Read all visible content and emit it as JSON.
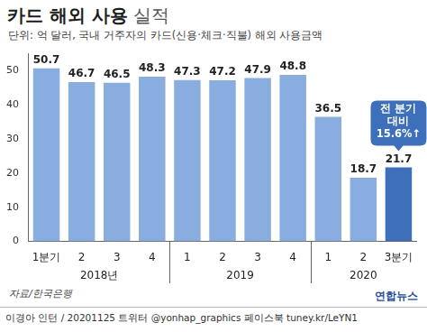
{
  "chart_data": {
    "type": "bar",
    "title": "카드 해외 사용 실적",
    "subtitle": "단위: 억 달러, 국내 거주자의 카드(신용·체크·직불) 해외 사용금액",
    "categories": [
      "1분기",
      "2",
      "3",
      "4",
      "1",
      "2",
      "3",
      "4",
      "1",
      "2",
      "3분기"
    ],
    "years": [
      {
        "label": "2018년",
        "span": 4
      },
      {
        "label": "2019",
        "span": 4
      },
      {
        "label": "2020",
        "span": 3
      }
    ],
    "values": [
      50.7,
      46.7,
      46.5,
      48.3,
      47.3,
      47.2,
      47.9,
      48.8,
      36.5,
      18.7,
      21.7
    ],
    "colors": [
      "#8aade0",
      "#8aade0",
      "#8aade0",
      "#8aade0",
      "#8aade0",
      "#8aade0",
      "#8aade0",
      "#8aade0",
      "#8aade0",
      "#8aade0",
      "#3d6fba"
    ],
    "ylim": [
      0,
      55
    ],
    "yticks": [
      0,
      10,
      20,
      30,
      40,
      50
    ],
    "grid": false,
    "data_labels": true,
    "annotation": {
      "text": [
        "전 분기",
        "대비",
        "15.6%↑"
      ],
      "at": "3분기"
    },
    "source": "자료/한국은행",
    "footer": "이경아 인턴 / 20201125  트위터 @yonhap_graphics  페이스북 tuney.kr/LeYN1",
    "logo": "연합뉴스"
  }
}
